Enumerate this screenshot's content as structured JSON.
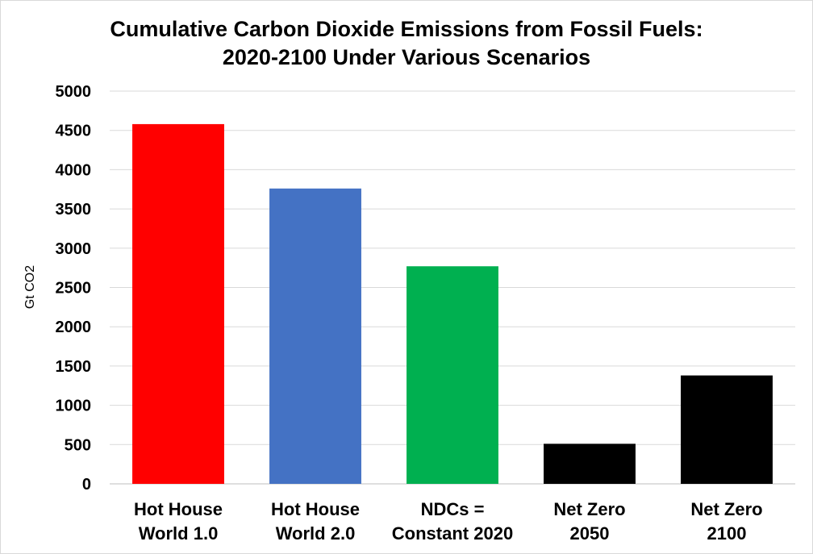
{
  "chart_data": {
    "type": "bar",
    "title": "Cumulative Carbon Dioxide Emissions from Fossil Fuels:",
    "subtitle": "2020-2100 Under Various Scenarios",
    "xlabel": "",
    "ylabel": "Gt CO2",
    "ylim": [
      0,
      5000
    ],
    "yticks": [
      "0",
      "500",
      "1000",
      "1500",
      "2000",
      "2500",
      "3000",
      "3500",
      "4000",
      "4500",
      "5000"
    ],
    "grid": true,
    "legend": "none",
    "categories": [
      [
        "Hot House",
        "World 1.0"
      ],
      [
        "Hot House",
        "World 2.0"
      ],
      [
        "NDCs =",
        "Constant 2020"
      ],
      [
        "Net Zero",
        "2050"
      ],
      [
        "Net Zero",
        "2100"
      ]
    ],
    "values": [
      4580,
      3760,
      2770,
      510,
      1380
    ],
    "colors": [
      "#ff0000",
      "#4472c4",
      "#00b050",
      "#000000",
      "#000000"
    ]
  }
}
